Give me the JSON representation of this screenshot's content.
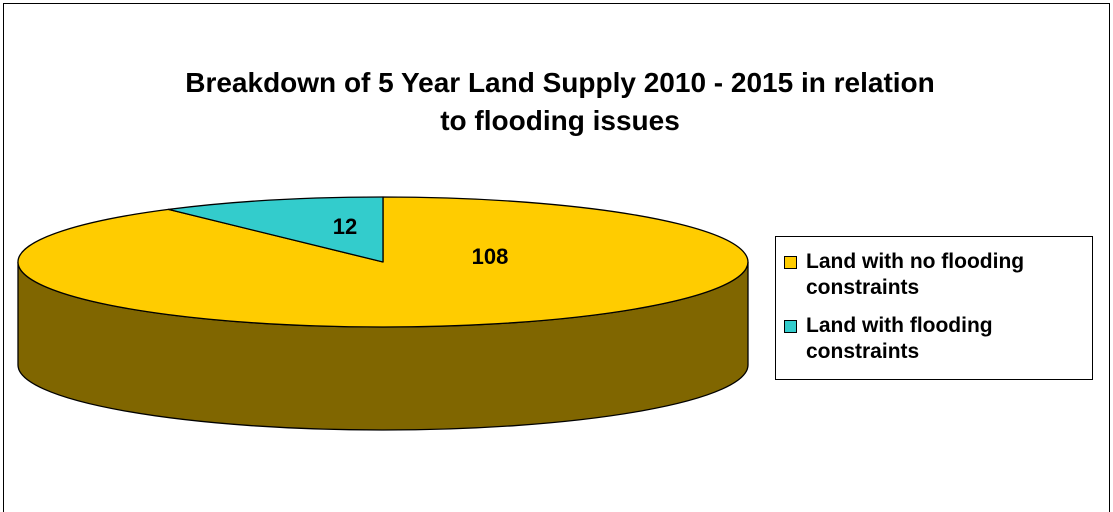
{
  "chart_data": {
    "type": "pie",
    "title": "Breakdown of 5 Year Land Supply 2010 - 2015 in relation to flooding issues",
    "title_lines": [
      "Breakdown of 5 Year Land Supply 2010 - 2015 in relation",
      "to flooding issues"
    ],
    "style": "3d",
    "legend_position": "right",
    "slices": [
      {
        "label": "Land with no flooding constraints",
        "label_lines": [
          "Land with no flooding",
          "constraints"
        ],
        "value": 108,
        "value_label": "108",
        "color": "#FFCC00",
        "side_color": "#806600"
      },
      {
        "label": "Land with flooding constraints",
        "label_lines": [
          "Land with flooding",
          "constraints"
        ],
        "value": 12,
        "value_label": "12",
        "color": "#33CCCC",
        "side_color": "#1A6666"
      }
    ]
  }
}
